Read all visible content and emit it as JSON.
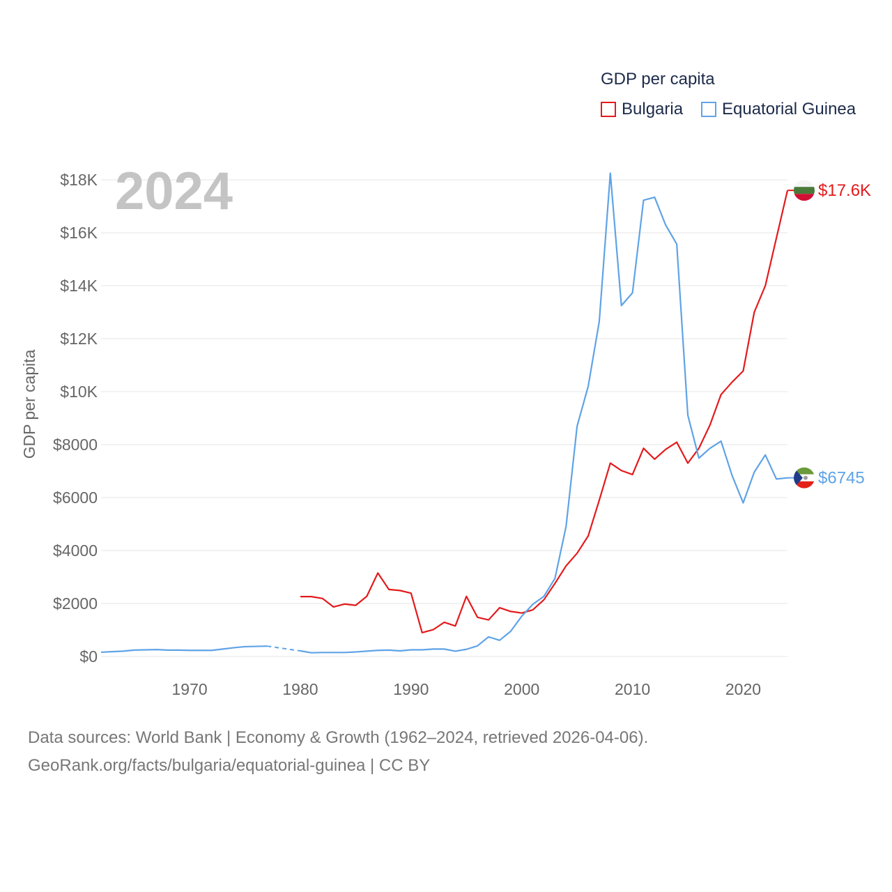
{
  "legend": {
    "title": "GDP per capita",
    "items": [
      {
        "label": "Bulgaria",
        "color": "#e31a1c"
      },
      {
        "label": "Equatorial Guinea",
        "color": "#5fa3e6"
      }
    ]
  },
  "year_label": "2024",
  "source": {
    "line1": "Data sources: World Bank | Economy & Growth (1962–2024, retrieved 2026-04-06).",
    "line2": "GeoRank.org/facts/bulgaria/equatorial-guinea | CC BY"
  },
  "chart_data": {
    "type": "line",
    "title": "",
    "xlabel": "",
    "ylabel": "GDP per capita",
    "xlim": [
      1962,
      2024
    ],
    "ylim": [
      0,
      18000
    ],
    "x_ticks": [
      1970,
      1980,
      1990,
      2000,
      2010,
      2020
    ],
    "y_ticks": [
      {
        "value": 0,
        "label": "$0"
      },
      {
        "value": 2000,
        "label": "$2000"
      },
      {
        "value": 4000,
        "label": "$4000"
      },
      {
        "value": 6000,
        "label": "$6000"
      },
      {
        "value": 8000,
        "label": "$8000"
      },
      {
        "value": 10000,
        "label": "$10K"
      },
      {
        "value": 12000,
        "label": "$12K"
      },
      {
        "value": 14000,
        "label": "$14K"
      },
      {
        "value": 16000,
        "label": "$16K"
      },
      {
        "value": 18000,
        "label": "$18K"
      }
    ],
    "series": [
      {
        "name": "Bulgaria",
        "color": "#e31a1c",
        "end_label": "$17.6K",
        "x": [
          1980,
          1981,
          1982,
          1983,
          1984,
          1985,
          1986,
          1987,
          1988,
          1989,
          1990,
          1991,
          1992,
          1993,
          1994,
          1995,
          1996,
          1997,
          1998,
          1999,
          2000,
          2001,
          2002,
          2003,
          2004,
          2005,
          2006,
          2007,
          2008,
          2009,
          2010,
          2011,
          2012,
          2013,
          2014,
          2015,
          2016,
          2017,
          2018,
          2019,
          2020,
          2021,
          2022,
          2023,
          2024
        ],
        "values": [
          2260,
          2260,
          2190,
          1870,
          1980,
          1930,
          2270,
          3150,
          2530,
          2490,
          2390,
          900,
          1010,
          1290,
          1150,
          2270,
          1480,
          1380,
          1840,
          1700,
          1640,
          1760,
          2140,
          2760,
          3420,
          3900,
          4550,
          5900,
          7300,
          7020,
          6870,
          7860,
          7450,
          7820,
          8090,
          7300,
          7860,
          8740,
          9890,
          10360,
          10780,
          13000,
          14000,
          15800,
          17600
        ],
        "gaps": []
      },
      {
        "name": "Equatorial Guinea",
        "color": "#5fa3e6",
        "end_label": "$6745",
        "x": [
          1962,
          1963,
          1964,
          1965,
          1966,
          1967,
          1968,
          1969,
          1970,
          1971,
          1972,
          1973,
          1974,
          1975,
          1976,
          1977,
          1980,
          1981,
          1982,
          1983,
          1984,
          1985,
          1986,
          1987,
          1988,
          1989,
          1990,
          1991,
          1992,
          1993,
          1994,
          1995,
          1996,
          1997,
          1998,
          1999,
          2000,
          2001,
          2002,
          2003,
          2004,
          2005,
          2006,
          2007,
          2008,
          2009,
          2010,
          2011,
          2012,
          2013,
          2014,
          2015,
          2016,
          2017,
          2018,
          2019,
          2020,
          2021,
          2022,
          2023,
          2024
        ],
        "values": [
          160,
          180,
          200,
          240,
          250,
          260,
          240,
          240,
          230,
          230,
          230,
          280,
          330,
          370,
          380,
          390,
          210,
          140,
          150,
          150,
          150,
          170,
          200,
          230,
          240,
          210,
          250,
          250,
          280,
          280,
          200,
          270,
          400,
          740,
          610,
          950,
          1520,
          1970,
          2270,
          2950,
          4900,
          8700,
          10200,
          12650,
          18250,
          13250,
          13730,
          17230,
          17340,
          16290,
          15570,
          9110,
          7490,
          7860,
          8130,
          6830,
          5800,
          6960,
          7610,
          6700,
          6745
        ],
        "gaps": [
          [
            1977,
            1980
          ]
        ]
      }
    ]
  }
}
